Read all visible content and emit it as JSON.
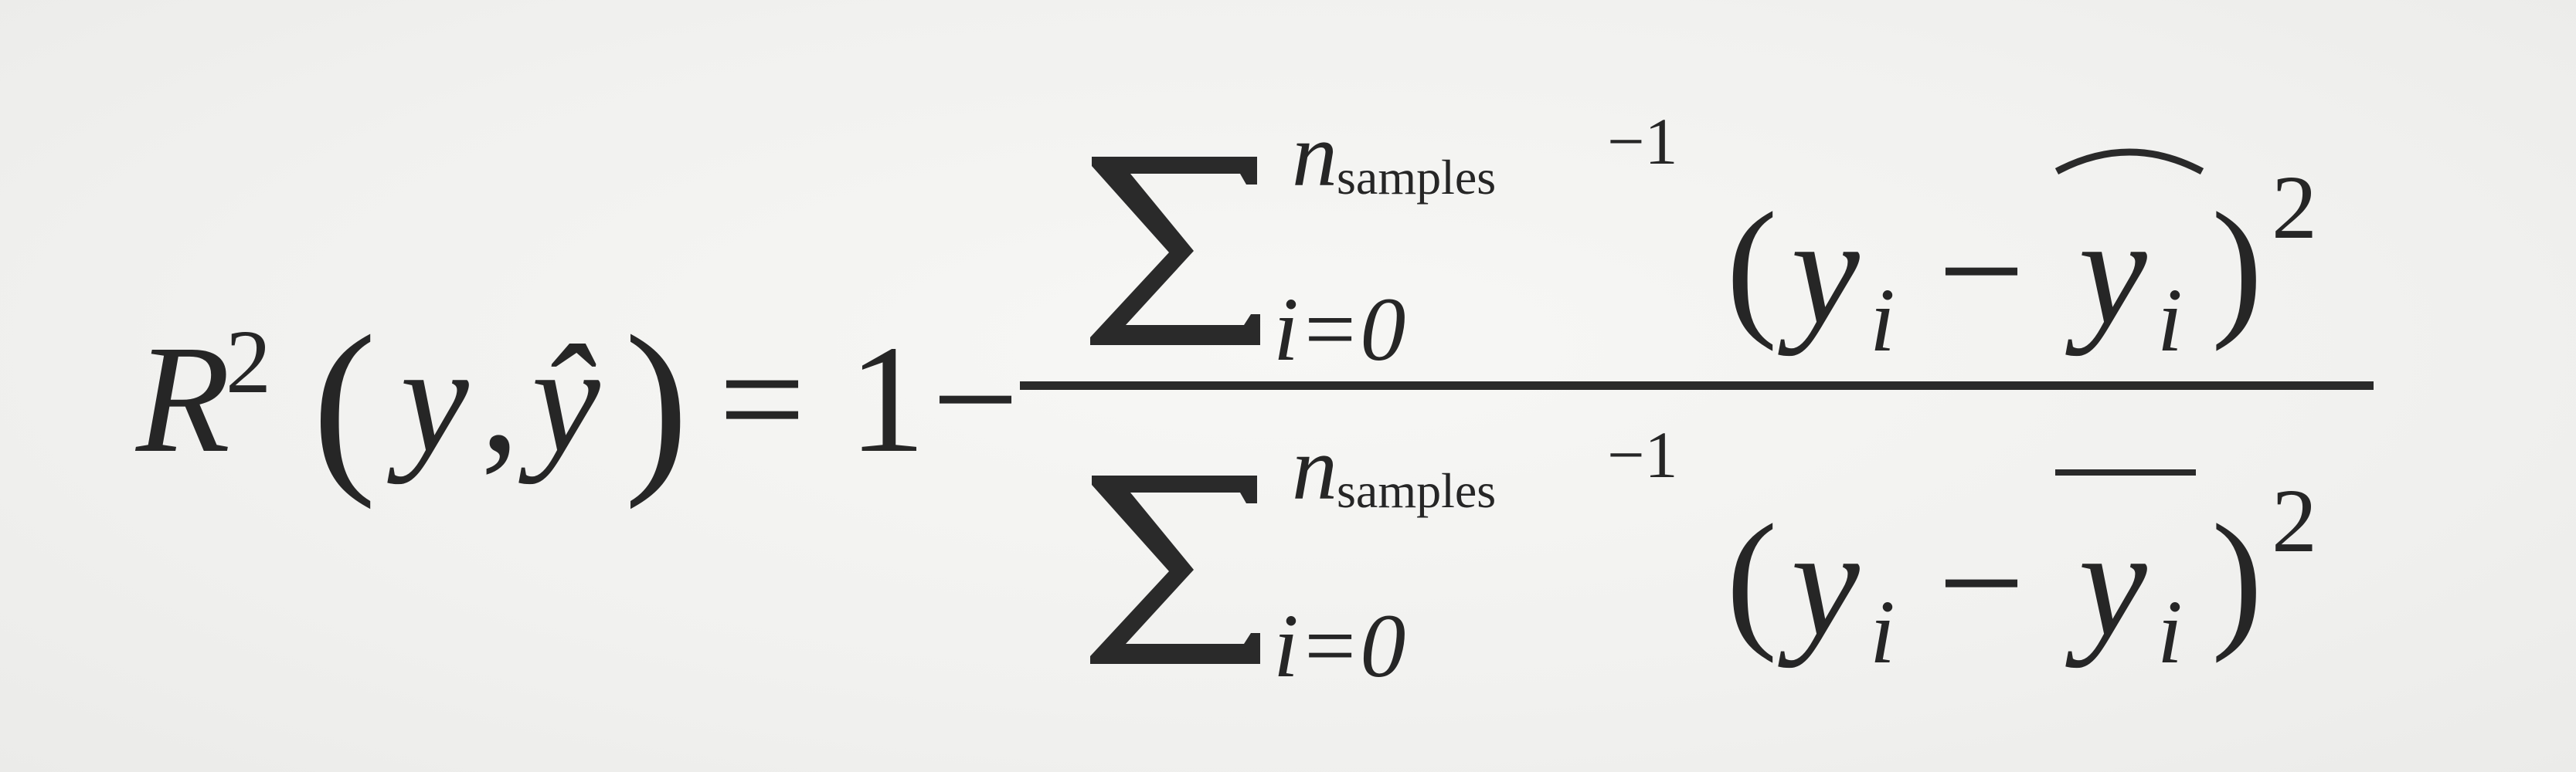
{
  "formula": {
    "lhs": {
      "symbol": "R",
      "exponent": "2",
      "open_paren": "(",
      "arg_y": "y",
      "comma": ",",
      "arg_yhat": "ŷ",
      "close_paren": ")"
    },
    "equals": "=",
    "one": "1",
    "minus": "−",
    "numerator": {
      "upper_limit_var": "n",
      "upper_limit_sub": "samples",
      "upper_limit_offset": "−1",
      "lower_limit": "i=0",
      "open_paren": "(",
      "term_y": "y",
      "term_y_sub": "i",
      "term_minus": "−",
      "term_pred": "y",
      "term_pred_sub": "i",
      "close_paren": ")",
      "exponent": "2"
    },
    "denominator": {
      "upper_limit_var": "n",
      "upper_limit_sub": "samples",
      "upper_limit_offset": "−1",
      "lower_limit": "i=0",
      "open_paren": "(",
      "term_y": "y",
      "term_y_sub": "i",
      "term_minus": "−",
      "term_mean": "y",
      "term_mean_sub": "i",
      "close_paren": ")",
      "exponent": "2"
    }
  }
}
